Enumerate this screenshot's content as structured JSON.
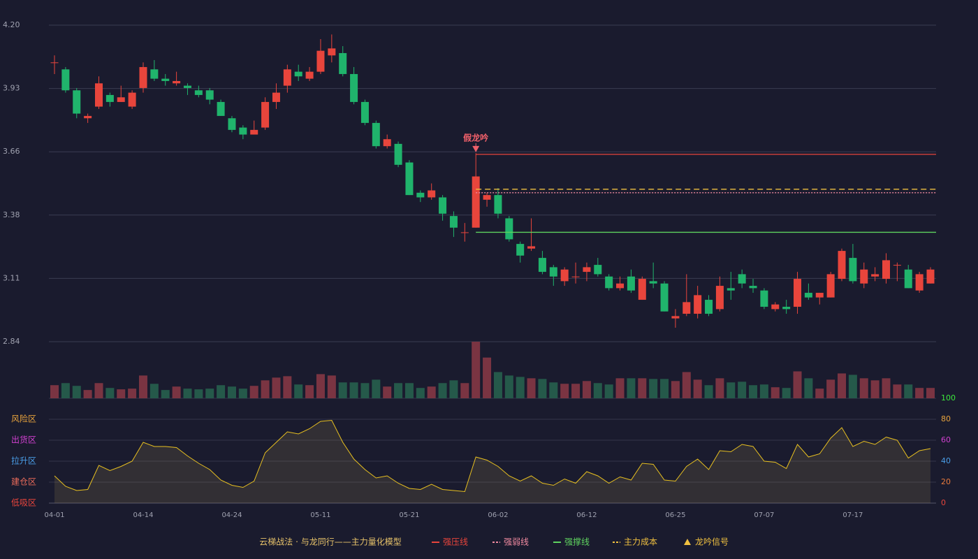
{
  "chart_data": {
    "type": "candlestick",
    "categories": [
      "04-01",
      null,
      null,
      null,
      null,
      null,
      null,
      null,
      "04-14",
      null,
      null,
      null,
      null,
      null,
      null,
      null,
      "04-24",
      null,
      null,
      null,
      null,
      null,
      null,
      null,
      "05-11",
      null,
      null,
      null,
      null,
      null,
      null,
      null,
      "05-21",
      null,
      null,
      null,
      null,
      null,
      null,
      null,
      "06-02",
      null,
      null,
      null,
      null,
      null,
      null,
      null,
      "06-12",
      null,
      null,
      null,
      null,
      null,
      null,
      null,
      "06-25",
      null,
      null,
      null,
      null,
      null,
      null,
      null,
      "07-07",
      null,
      null,
      null,
      null,
      null,
      null,
      null,
      "07-17",
      null,
      null,
      null,
      null,
      null,
      null,
      null
    ],
    "open": [
      4.04,
      4.01,
      3.92,
      3.8,
      3.85,
      3.9,
      3.87,
      3.85,
      3.93,
      4.01,
      3.97,
      3.95,
      3.94,
      3.92,
      3.92,
      3.87,
      3.8,
      3.76,
      3.73,
      3.76,
      3.87,
      3.94,
      4.0,
      3.97,
      4.0,
      4.07,
      4.08,
      3.99,
      3.87,
      3.78,
      3.68,
      3.69,
      3.61,
      3.48,
      3.46,
      3.46,
      3.38,
      3.31,
      3.33,
      3.45,
      3.47,
      3.37,
      3.26,
      3.24,
      3.2,
      3.16,
      3.1,
      3.12,
      3.14,
      3.17,
      3.12,
      3.07,
      3.12,
      3.02,
      3.1,
      3.09,
      2.94,
      2.96,
      2.96,
      3.02,
      2.98,
      3.07,
      3.13,
      3.08,
      3.06,
      2.98,
      2.99,
      2.99,
      3.05,
      3.03,
      3.03,
      3.11,
      3.2,
      3.09,
      3.12,
      3.11,
      3.17,
      3.15,
      3.06,
      3.09
    ],
    "high": [
      4.07,
      4.02,
      3.93,
      3.82,
      3.98,
      3.91,
      3.94,
      3.92,
      4.04,
      4.05,
      3.99,
      4.0,
      3.95,
      3.94,
      3.93,
      3.88,
      3.81,
      3.77,
      3.79,
      3.89,
      3.95,
      4.03,
      4.03,
      4.02,
      4.14,
      4.16,
      4.11,
      4.02,
      3.88,
      3.79,
      3.73,
      3.7,
      3.62,
      3.49,
      3.52,
      3.47,
      3.4,
      3.35,
      3.65,
      3.48,
      3.5,
      3.38,
      3.27,
      3.37,
      3.23,
      3.17,
      3.16,
      3.18,
      3.18,
      3.2,
      3.13,
      3.12,
      3.15,
      3.12,
      3.18,
      3.1,
      2.98,
      3.13,
      3.08,
      3.04,
      3.12,
      3.14,
      3.15,
      3.11,
      3.07,
      3.01,
      3.02,
      3.14,
      3.09,
      3.05,
      3.14,
      3.24,
      3.26,
      3.18,
      3.16,
      3.22,
      3.18,
      3.17,
      3.14,
      3.16
    ],
    "low": [
      3.99,
      3.91,
      3.8,
      3.78,
      3.84,
      3.85,
      3.87,
      3.84,
      3.91,
      3.96,
      3.94,
      3.94,
      3.9,
      3.89,
      3.86,
      3.81,
      3.74,
      3.71,
      3.73,
      3.75,
      3.84,
      3.91,
      3.96,
      3.96,
      3.99,
      4.04,
      3.98,
      3.86,
      3.77,
      3.67,
      3.67,
      3.59,
      3.47,
      3.44,
      3.45,
      3.36,
      3.29,
      3.27,
      3.33,
      3.42,
      3.37,
      3.27,
      3.18,
      3.23,
      3.13,
      3.08,
      3.08,
      3.09,
      3.1,
      3.12,
      3.06,
      3.06,
      3.05,
      3.02,
      3.07,
      2.97,
      2.9,
      2.95,
      2.94,
      2.95,
      2.97,
      3.02,
      3.07,
      3.05,
      2.98,
      2.97,
      2.96,
      2.96,
      3.02,
      3.0,
      3.03,
      3.1,
      3.09,
      3.07,
      3.1,
      3.09,
      3.1,
      3.07,
      3.05,
      3.09
    ],
    "close": [
      4.04,
      3.92,
      3.82,
      3.81,
      3.95,
      3.87,
      3.89,
      3.91,
      4.02,
      3.97,
      3.96,
      3.96,
      3.93,
      3.9,
      3.88,
      3.81,
      3.75,
      3.73,
      3.75,
      3.87,
      3.91,
      4.01,
      3.98,
      4.0,
      4.09,
      4.1,
      3.99,
      3.87,
      3.78,
      3.68,
      3.71,
      3.6,
      3.47,
      3.46,
      3.49,
      3.39,
      3.33,
      3.31,
      3.55,
      3.47,
      3.39,
      3.28,
      3.21,
      3.25,
      3.14,
      3.12,
      3.15,
      3.12,
      3.16,
      3.13,
      3.07,
      3.09,
      3.06,
      3.11,
      3.09,
      2.97,
      2.95,
      3.01,
      3.04,
      2.96,
      3.08,
      3.06,
      3.09,
      3.07,
      2.99,
      3.0,
      2.98,
      3.11,
      3.03,
      3.05,
      3.13,
      3.23,
      3.1,
      3.15,
      3.13,
      3.19,
      3.17,
      3.07,
      3.13,
      3.15
    ],
    "volume": [
      19,
      22,
      18,
      12,
      22,
      15,
      13,
      14,
      33,
      21,
      12,
      17,
      14,
      13,
      14,
      19,
      17,
      14,
      18,
      26,
      30,
      32,
      20,
      19,
      35,
      33,
      23,
      23,
      22,
      27,
      17,
      22,
      22,
      15,
      17,
      22,
      26,
      22,
      82,
      59,
      38,
      33,
      31,
      29,
      28,
      23,
      21,
      21,
      25,
      22,
      20,
      29,
      29,
      29,
      28,
      28,
      25,
      38,
      27,
      19,
      29,
      23,
      24,
      19,
      20,
      16,
      15,
      39,
      29,
      14,
      27,
      36,
      34,
      29,
      26,
      29,
      20,
      20,
      15,
      15
    ],
    "up_color": "#e8453c",
    "down_color": "#20b46c",
    "volume_up_color": "#7a3442",
    "volume_down_color": "#25594a",
    "ylim": [
      2.84,
      4.2
    ],
    "yticks": [
      2.84,
      {
        "value": 3.112,
        "label": "3.11"
      },
      {
        "value": 3.384,
        "label": "3.38"
      },
      {
        "value": 3.656,
        "label": "3.66"
      },
      {
        "value": 3.928,
        "label": "3.93"
      },
      {
        "value": 4.2,
        "label": "4.20"
      }
    ],
    "grid": true,
    "lines": [
      {
        "name": "强压线",
        "value": 3.645,
        "color": "#e8453c",
        "style": "solid"
      },
      {
        "name": "强弱线",
        "value": 3.48,
        "color": "#f08aa0",
        "style": "dotted"
      },
      {
        "name": "强撑线",
        "value": 3.31,
        "color": "#5fd35f",
        "style": "solid"
      },
      {
        "name": "主力成本",
        "value": 3.495,
        "color": "#f0c040",
        "style": "dashed"
      }
    ],
    "signal": {
      "name": "龙吟信号",
      "label": "假龙吟",
      "index": 38,
      "color": "#f0c040",
      "marker_color": "#f0606a"
    },
    "indicator": {
      "values": [
        26,
        16,
        12,
        13,
        36,
        31,
        35,
        40,
        58,
        54,
        54,
        53,
        45,
        38,
        32,
        22,
        17,
        15,
        21,
        48,
        58,
        68,
        66,
        71,
        78,
        79,
        58,
        42,
        32,
        24,
        26,
        19,
        14,
        13,
        18,
        13,
        12,
        11,
        44,
        41,
        35,
        26,
        21,
        26,
        19,
        17,
        23,
        19,
        30,
        26,
        19,
        25,
        22,
        38,
        37,
        22,
        21,
        35,
        42,
        32,
        50,
        49,
        56,
        54,
        40,
        39,
        33,
        56,
        44,
        47,
        62,
        72,
        54,
        59,
        56,
        63,
        60,
        43,
        50,
        52
      ],
      "color": "#e8c020",
      "ylim": [
        0,
        100
      ],
      "yticks": [
        0,
        20,
        40,
        60,
        80,
        100
      ],
      "ytick_colors": [
        "#e8453c",
        "#e87a3c",
        "#4a9ee8",
        "#d040d0",
        "#e8a33d",
        "#3ce83c"
      ],
      "zones": [
        {
          "label": "低吸区",
          "value": 0,
          "color": "#e8453c"
        },
        {
          "label": "建仓区",
          "value": 20,
          "color": "#e86a5a"
        },
        {
          "label": "拉升区",
          "value": 40,
          "color": "#4a9ee8"
        },
        {
          "label": "出货区",
          "value": 60,
          "color": "#d040d0"
        },
        {
          "label": "风险区",
          "value": 80,
          "color": "#e8a33d"
        }
      ]
    },
    "legend_title": "云梯战法 · 与龙同行——主力量化模型"
  }
}
